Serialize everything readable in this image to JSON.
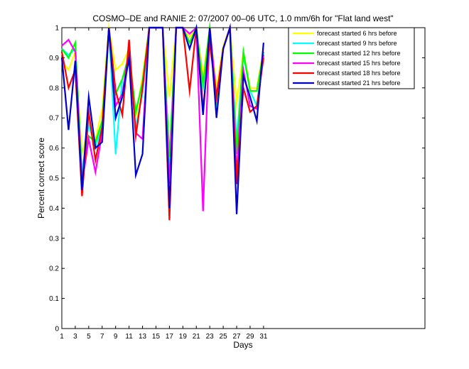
{
  "chart_data": {
    "type": "line",
    "title": "COSMO–DE and RANIE 2: 07/2007 00–06 UTC, 1.0 mm/6h for \"Flat land west\"",
    "xlabel": "Days",
    "ylabel": "Percent correct score",
    "xlim": [
      1,
      55
    ],
    "ylim": [
      0,
      1
    ],
    "xticks": [
      1,
      3,
      5,
      7,
      9,
      11,
      13,
      15,
      17,
      19,
      21,
      23,
      25,
      27,
      29,
      31
    ],
    "yticks": [
      0,
      0.1,
      0.2,
      0.3,
      0.4,
      0.5,
      0.6,
      0.7,
      0.8,
      0.9,
      1
    ],
    "ytick_labels": [
      "0",
      "0.1",
      "0.2",
      "0.3",
      "0.4",
      "0.5",
      "0.6",
      "0.7",
      "0.8",
      "0.9",
      "1"
    ],
    "grid": false,
    "legend_position": "top-right",
    "x": [
      1,
      2,
      3,
      4,
      5,
      6,
      7,
      8,
      9,
      10,
      11,
      12,
      13,
      14,
      15,
      16,
      17,
      18,
      19,
      20,
      21,
      22,
      23,
      24,
      25,
      26,
      27,
      28,
      29,
      30,
      31
    ],
    "series": [
      {
        "name": "forecast started 6 hrs before",
        "color": "#ffff00",
        "values": [
          0.89,
          0.86,
          0.92,
          0.58,
          0.67,
          0.63,
          0.73,
          1.0,
          0.86,
          0.88,
          0.93,
          0.7,
          0.84,
          1.0,
          1.0,
          1.0,
          0.77,
          1.0,
          1.0,
          0.97,
          1.0,
          0.84,
          1.0,
          0.8,
          0.94,
          1.0,
          0.75,
          0.92,
          0.8,
          0.8,
          0.93
        ]
      },
      {
        "name": "forecast started 9 hrs before",
        "color": "#00ffff",
        "values": [
          0.93,
          0.91,
          0.93,
          0.52,
          0.68,
          0.6,
          0.68,
          1.0,
          0.58,
          0.83,
          0.9,
          0.67,
          0.78,
          1.0,
          1.0,
          1.0,
          0.54,
          1.0,
          1.0,
          0.93,
          1.0,
          0.8,
          1.0,
          0.75,
          0.93,
          1.0,
          0.62,
          0.91,
          0.79,
          0.74,
          0.92
        ]
      },
      {
        "name": "forecast started 12 hrs before",
        "color": "#00ff00",
        "values": [
          0.93,
          0.9,
          0.95,
          0.5,
          0.64,
          0.62,
          0.69,
          1.0,
          0.78,
          0.83,
          0.91,
          0.72,
          0.82,
          1.0,
          1.0,
          1.0,
          0.57,
          1.0,
          1.0,
          0.95,
          1.0,
          0.81,
          1.0,
          0.76,
          0.93,
          1.0,
          0.58,
          0.92,
          0.79,
          0.79,
          0.92
        ]
      },
      {
        "name": "forecast started 15 hrs before",
        "color": "#ff00ff",
        "values": [
          0.94,
          0.96,
          0.92,
          0.48,
          0.63,
          0.52,
          0.65,
          1.0,
          0.74,
          0.78,
          0.93,
          0.65,
          0.63,
          1.0,
          1.0,
          1.0,
          0.48,
          1.0,
          1.0,
          0.98,
          1.0,
          0.39,
          1.0,
          0.77,
          0.93,
          1.0,
          0.51,
          0.86,
          0.74,
          0.73,
          0.91
        ]
      },
      {
        "name": "forecast started 18 hrs before",
        "color": "#ff0000",
        "values": [
          0.92,
          0.8,
          0.86,
          0.44,
          0.72,
          0.56,
          0.67,
          1.0,
          0.79,
          0.71,
          0.96,
          0.64,
          0.8,
          1.0,
          1.0,
          1.0,
          0.36,
          1.0,
          1.0,
          0.79,
          1.0,
          0.73,
          0.95,
          0.77,
          0.93,
          1.0,
          0.48,
          0.8,
          0.72,
          0.74,
          0.9
        ]
      },
      {
        "name": "forecast started 21 hrs before",
        "color": "#0000cc",
        "values": [
          0.9,
          0.66,
          0.89,
          0.46,
          0.77,
          0.6,
          0.62,
          1.0,
          0.7,
          0.77,
          0.9,
          0.51,
          0.58,
          1.0,
          1.0,
          1.0,
          0.4,
          1.0,
          1.0,
          0.93,
          1.0,
          0.71,
          1.0,
          0.7,
          0.93,
          1.0,
          0.38,
          0.84,
          0.77,
          0.69,
          0.95
        ]
      }
    ]
  }
}
